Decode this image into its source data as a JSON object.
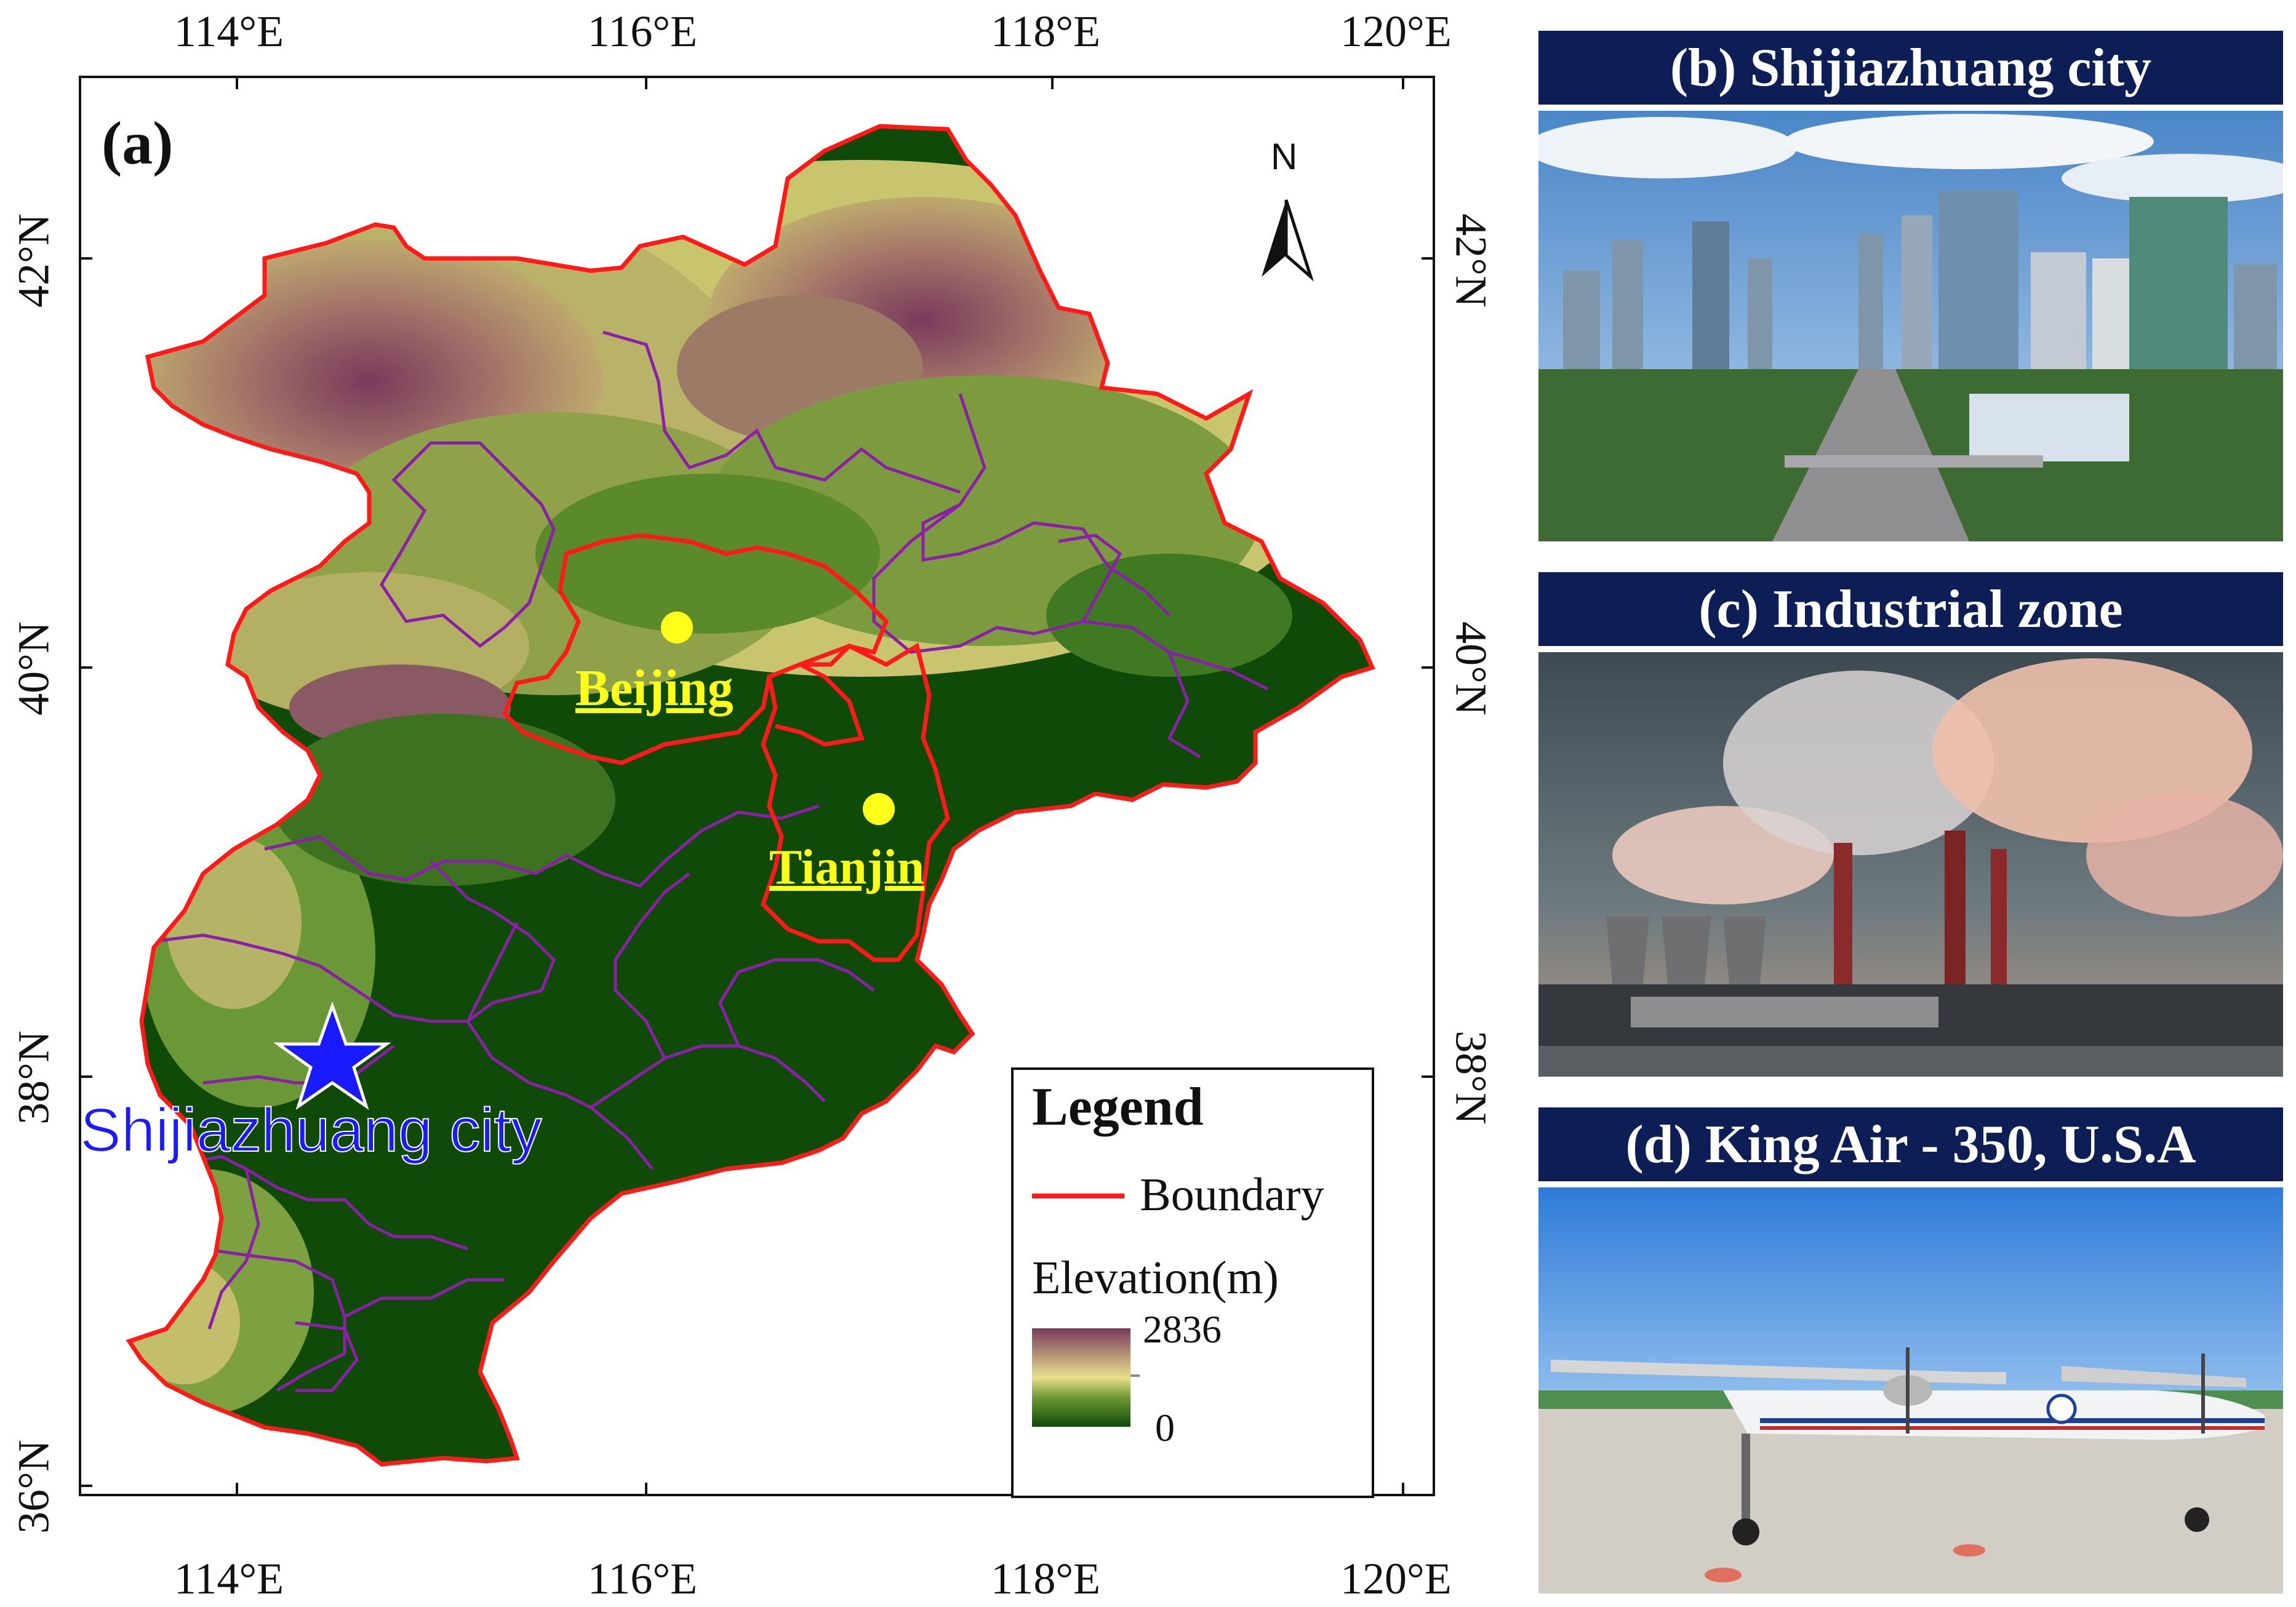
{
  "map": {
    "panel_label": "(a)",
    "top_ticks": [
      "114°E",
      "116°E",
      "118°E",
      "120°E"
    ],
    "bottom_ticks": [
      "114°E",
      "116°E",
      "118°E",
      "120°E"
    ],
    "left_ticks": [
      "42°N",
      "40°N",
      "38°N",
      "36°N"
    ],
    "right_ticks": [
      "42°N",
      "40°N",
      "38°N"
    ],
    "north_arrow": {
      "label": "N",
      "icon": "north-arrow-icon"
    },
    "cities": [
      {
        "name": "Beijing",
        "marker_color": "#ffff1a"
      },
      {
        "name": "Tianjin",
        "marker_color": "#ffff1a"
      }
    ],
    "study_site": {
      "name": "Shijiazhuang city",
      "icon": "star-icon",
      "color": "#1a1aff"
    },
    "colors": {
      "boundary": "#ff1a1a",
      "county_lines": "#8b1fa8",
      "low": "#0f4a08",
      "mid": "#d6d36a",
      "high": "#7a3a5c"
    }
  },
  "legend": {
    "title": "Legend",
    "boundary_label": "Boundary",
    "elevation_title": "Elevation(m)",
    "elevation_max": "2836",
    "elevation_min": "0"
  },
  "panels": [
    {
      "title": "(b) Shijiazhuang city"
    },
    {
      "title": "(c) Industrial zone"
    },
    {
      "title": "(d) King Air - 350, U.S.A"
    }
  ]
}
